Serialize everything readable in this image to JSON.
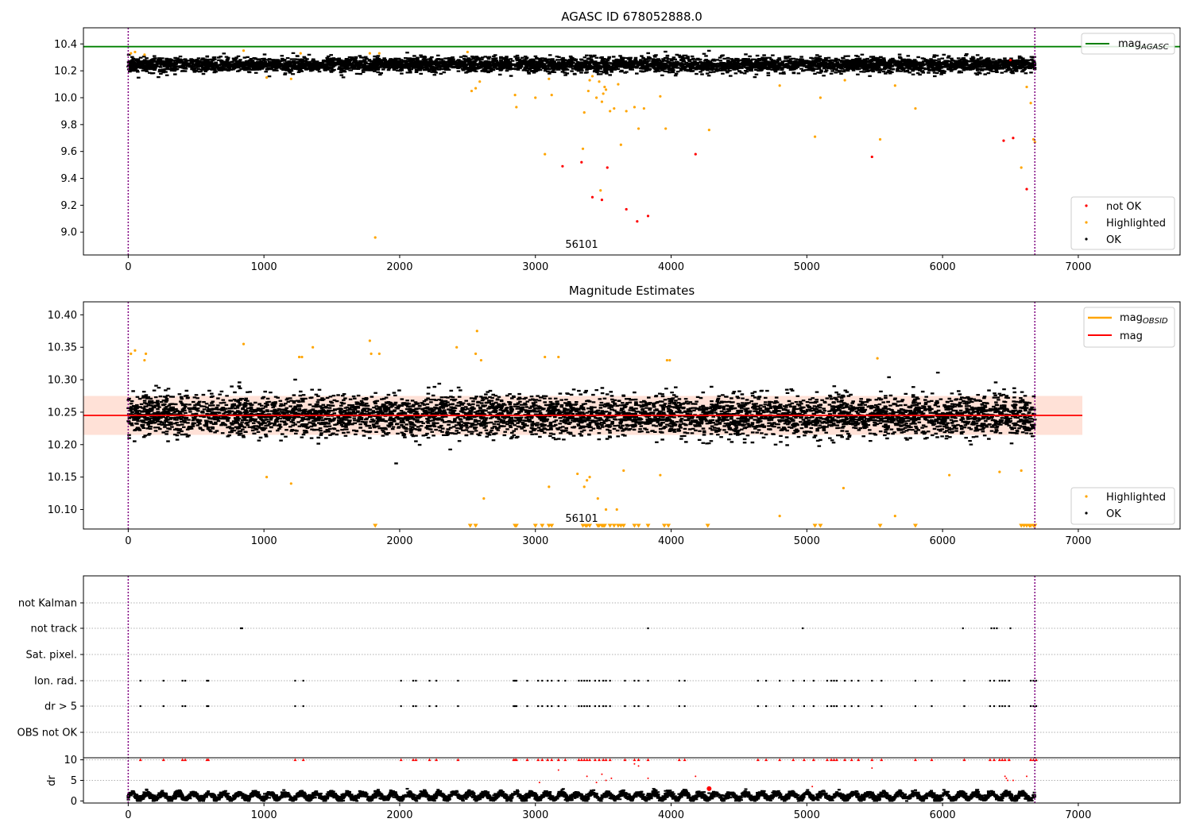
{
  "chart_data": [
    {
      "type": "scatter",
      "title": "AGASC ID 678052888.0",
      "xlim": [
        -330,
        7750
      ],
      "ylim": [
        8.83,
        10.52
      ],
      "x_ticks": [
        0,
        1000,
        2000,
        3000,
        4000,
        5000,
        6000,
        7000
      ],
      "y_ticks": [
        9.0,
        9.2,
        9.4,
        9.6,
        9.8,
        10.0,
        10.2,
        10.4
      ],
      "x_tick_labels": [
        "0",
        "1000",
        "2000",
        "3000",
        "4000",
        "5000",
        "6000",
        "7000"
      ],
      "y_tick_labels": [
        "9.0",
        "9.2",
        "9.4",
        "9.6",
        "9.8",
        "10.0",
        "10.2",
        "10.4"
      ],
      "annotation": "56101",
      "vlines": [
        0,
        6680
      ],
      "reference_line": {
        "y": 10.38,
        "color": "#008000"
      },
      "legend_upper": {
        "label": "mag",
        "sub": "AGASC",
        "color": "#008000"
      },
      "legend_lower": [
        {
          "label": "not OK",
          "color": "#ff0000"
        },
        {
          "label": "Highlighted",
          "color": "#ffa500"
        },
        {
          "label": "OK",
          "color": "#000000"
        }
      ],
      "ok_band": {
        "center": 10.245,
        "spread": 0.028,
        "x_range": [
          0,
          6680
        ]
      },
      "highlighted": [
        [
          20,
          10.33
        ],
        [
          50,
          10.34
        ],
        [
          120,
          10.32
        ],
        [
          850,
          10.35
        ],
        [
          1020,
          10.15
        ],
        [
          1200,
          10.14
        ],
        [
          1270,
          10.33
        ],
        [
          1780,
          10.33
        ],
        [
          1820,
          8.96
        ],
        [
          1850,
          10.33
        ],
        [
          2500,
          10.34
        ],
        [
          2530,
          10.05
        ],
        [
          2560,
          10.07
        ],
        [
          2590,
          10.12
        ],
        [
          2850,
          10.02
        ],
        [
          2860,
          9.93
        ],
        [
          3000,
          10.0
        ],
        [
          3070,
          9.58
        ],
        [
          3100,
          10.14
        ],
        [
          3120,
          10.02
        ],
        [
          3350,
          9.62
        ],
        [
          3360,
          9.89
        ],
        [
          3390,
          10.05
        ],
        [
          3400,
          10.13
        ],
        [
          3420,
          10.16
        ],
        [
          3450,
          10.0
        ],
        [
          3470,
          10.12
        ],
        [
          3480,
          9.31
        ],
        [
          3490,
          9.97
        ],
        [
          3500,
          10.03
        ],
        [
          3510,
          10.08
        ],
        [
          3520,
          10.06
        ],
        [
          3550,
          9.9
        ],
        [
          3580,
          9.92
        ],
        [
          3610,
          10.1
        ],
        [
          3630,
          9.65
        ],
        [
          3670,
          9.9
        ],
        [
          3730,
          9.93
        ],
        [
          3760,
          9.77
        ],
        [
          3800,
          9.92
        ],
        [
          3920,
          10.01
        ],
        [
          3960,
          9.77
        ],
        [
          4280,
          9.76
        ],
        [
          4800,
          10.09
        ],
        [
          5060,
          9.71
        ],
        [
          5100,
          10.0
        ],
        [
          5280,
          10.13
        ],
        [
          5540,
          9.69
        ],
        [
          5650,
          10.09
        ],
        [
          5800,
          9.92
        ],
        [
          6580,
          9.48
        ],
        [
          6620,
          10.08
        ],
        [
          6650,
          9.96
        ],
        [
          6670,
          9.69
        ],
        [
          6680,
          9.67
        ]
      ],
      "not_ok": [
        [
          3200,
          9.49
        ],
        [
          3340,
          9.52
        ],
        [
          3420,
          9.26
        ],
        [
          3490,
          9.24
        ],
        [
          3530,
          9.48
        ],
        [
          3670,
          9.17
        ],
        [
          3750,
          9.08
        ],
        [
          3830,
          9.12
        ],
        [
          4180,
          9.58
        ],
        [
          5480,
          9.56
        ],
        [
          6450,
          9.68
        ],
        [
          6500,
          10.28
        ],
        [
          6520,
          9.7
        ],
        [
          6620,
          9.32
        ]
      ]
    },
    {
      "type": "scatter",
      "title": "Magnitude Estimates",
      "xlim": [
        -330,
        7750
      ],
      "ylim": [
        10.07,
        10.42
      ],
      "x_ticks": [
        0,
        1000,
        2000,
        3000,
        4000,
        5000,
        6000,
        7000
      ],
      "y_ticks": [
        10.1,
        10.15,
        10.2,
        10.25,
        10.3,
        10.35,
        10.4
      ],
      "x_tick_labels": [
        "0",
        "1000",
        "2000",
        "3000",
        "4000",
        "5000",
        "6000",
        "7000"
      ],
      "y_tick_labels": [
        "10.10",
        "10.15",
        "10.20",
        "10.25",
        "10.30",
        "10.35",
        "10.40"
      ],
      "annotation": "56101",
      "vlines": [
        0,
        6680
      ],
      "mean_line": {
        "y": 10.245,
        "x_range": [
          -330,
          7030
        ],
        "color": "#ff0000"
      },
      "std_band": {
        "low": 10.215,
        "high": 10.275,
        "x_range": [
          -330,
          7030
        ]
      },
      "legend_upper": [
        {
          "label": "mag",
          "sub": "OBSID",
          "color": "#ffa500"
        },
        {
          "label": "mag",
          "sub": "",
          "color": "#ff0000"
        }
      ],
      "legend_lower": [
        {
          "label": "Highlighted",
          "color": "#ffa500"
        },
        {
          "label": "OK",
          "color": "#000000"
        }
      ],
      "ok_band": {
        "center": 10.245,
        "spread": 0.028,
        "x_range": [
          0,
          6680
        ]
      },
      "highlighted": [
        [
          20,
          10.34
        ],
        [
          50,
          10.345
        ],
        [
          120,
          10.33
        ],
        [
          130,
          10.34
        ],
        [
          850,
          10.355
        ],
        [
          1020,
          10.15
        ],
        [
          1200,
          10.14
        ],
        [
          1260,
          10.335
        ],
        [
          1280,
          10.335
        ],
        [
          1360,
          10.35
        ],
        [
          1780,
          10.36
        ],
        [
          1790,
          10.34
        ],
        [
          1850,
          10.34
        ],
        [
          2420,
          10.35
        ],
        [
          2560,
          10.34
        ],
        [
          2570,
          10.375
        ],
        [
          2600,
          10.33
        ],
        [
          2620,
          10.117
        ],
        [
          3070,
          10.335
        ],
        [
          3100,
          10.135
        ],
        [
          3170,
          10.335
        ],
        [
          3310,
          10.155
        ],
        [
          3360,
          10.135
        ],
        [
          3380,
          10.145
        ],
        [
          3400,
          10.15
        ],
        [
          3460,
          10.117
        ],
        [
          3520,
          10.1
        ],
        [
          3600,
          10.1
        ],
        [
          3650,
          10.16
        ],
        [
          3920,
          10.153
        ],
        [
          3970,
          10.33
        ],
        [
          3990,
          10.33
        ],
        [
          4800,
          10.09
        ],
        [
          5270,
          10.133
        ],
        [
          5520,
          10.333
        ],
        [
          5650,
          10.09
        ],
        [
          6050,
          10.153
        ],
        [
          6420,
          10.158
        ],
        [
          6580,
          10.16
        ]
      ],
      "triangles_x": [
        1820,
        2520,
        2560,
        2850,
        2860,
        3000,
        3050,
        3100,
        3120,
        3350,
        3370,
        3380,
        3400,
        3460,
        3470,
        3490,
        3500,
        3510,
        3550,
        3580,
        3610,
        3630,
        3650,
        3730,
        3760,
        3830,
        3950,
        3980,
        4270,
        5060,
        5100,
        5540,
        5800,
        6580,
        6600,
        6620,
        6640,
        6650,
        6670,
        6680
      ]
    },
    {
      "type": "scatter",
      "ylabel": "dr",
      "xlim": [
        -330,
        7750
      ],
      "x_ticks": [
        0,
        1000,
        2000,
        3000,
        4000,
        5000,
        6000,
        7000
      ],
      "x_tick_labels": [
        "0",
        "1000",
        "2000",
        "3000",
        "4000",
        "5000",
        "6000",
        "7000"
      ],
      "flag_labels": [
        "not Kalman",
        "not track",
        "Sat. pixel.",
        "Ion. rad.",
        "dr > 5",
        "OBS not OK"
      ],
      "dr_ticks": [
        0,
        5,
        10
      ],
      "dr_tick_labels": [
        "0",
        "5",
        "10"
      ],
      "dr_ylim": [
        -0.5,
        10.5
      ],
      "vlines": [
        0,
        6680
      ],
      "not_track_x": [
        830,
        840,
        3830,
        4970,
        6150,
        6360,
        6380,
        6400,
        6500
      ],
      "ion_rad_x": [
        90,
        260,
        400,
        420,
        580,
        590,
        1230,
        1290,
        2010,
        2100,
        2120,
        2220,
        2270,
        2430,
        2840,
        2850,
        2860,
        2940,
        3020,
        3050,
        3090,
        3120,
        3170,
        3220,
        3320,
        3340,
        3360,
        3380,
        3400,
        3440,
        3470,
        3500,
        3520,
        3550,
        3660,
        3730,
        3760,
        3830,
        4060,
        4100,
        4640,
        4700,
        4800,
        4900,
        4980,
        5050,
        5150,
        5180,
        5200,
        5220,
        5280,
        5330,
        5380,
        5480,
        5550,
        5800,
        5920,
        6160,
        6350,
        6380,
        6420,
        6440,
        6460,
        6490,
        6650,
        6670,
        6690
      ],
      "dr_red": [
        [
          3030,
          4.5
        ],
        [
          3170,
          7.5
        ],
        [
          3380,
          6
        ],
        [
          3450,
          4.5
        ],
        [
          3490,
          6.5
        ],
        [
          3520,
          5
        ],
        [
          3560,
          5.5
        ],
        [
          3730,
          9
        ],
        [
          3760,
          8.5
        ],
        [
          3830,
          5.5
        ],
        [
          4180,
          6
        ],
        [
          5040,
          3.5
        ],
        [
          5480,
          8
        ],
        [
          6460,
          6
        ],
        [
          6470,
          5.5
        ],
        [
          6480,
          5
        ],
        [
          6520,
          5
        ],
        [
          6620,
          6
        ]
      ]
    }
  ]
}
